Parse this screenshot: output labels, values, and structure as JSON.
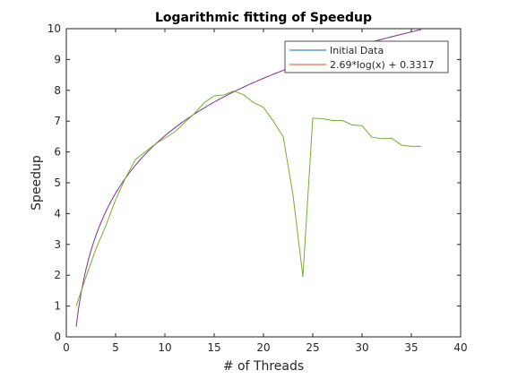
{
  "chart_data": {
    "type": "line",
    "title": "Logarithmic fitting of Speedup",
    "xlabel": "# of Threads",
    "ylabel": "Speedup",
    "xlim": [
      0,
      40
    ],
    "ylim": [
      0,
      10
    ],
    "xticks": [
      0,
      5,
      10,
      15,
      20,
      25,
      30,
      35,
      40
    ],
    "yticks": [
      0,
      1,
      2,
      3,
      4,
      5,
      6,
      7,
      8,
      9,
      10
    ],
    "grid": false,
    "legend_position": "top-right",
    "series": [
      {
        "name": "Initial Data",
        "color": "#77ac30",
        "legend_color": "#0072bd",
        "x": [
          1,
          2,
          3,
          4,
          5,
          6,
          7,
          8,
          9,
          10,
          11,
          12,
          13,
          14,
          15,
          16,
          17,
          18,
          19,
          20,
          21,
          22,
          23,
          24,
          25,
          26,
          27,
          28,
          29,
          30,
          31,
          32,
          33,
          34,
          35,
          36
        ],
        "y": [
          1.0,
          1.95,
          2.85,
          3.6,
          4.45,
          5.15,
          5.75,
          6.0,
          6.25,
          6.45,
          6.65,
          6.95,
          7.25,
          7.6,
          7.82,
          7.85,
          7.98,
          7.85,
          7.6,
          7.45,
          7.0,
          6.5,
          4.6,
          1.95,
          7.1,
          7.08,
          7.02,
          7.02,
          6.88,
          6.85,
          6.48,
          6.43,
          6.45,
          6.22,
          6.18,
          6.18
        ]
      },
      {
        "name": "2.69*log(x) + 0.3317",
        "color": "#7e2f8e",
        "legend_color": "#d95319",
        "formula": {
          "a": 2.69,
          "b": 0.3317
        },
        "x_range": [
          1,
          36
        ]
      }
    ]
  }
}
